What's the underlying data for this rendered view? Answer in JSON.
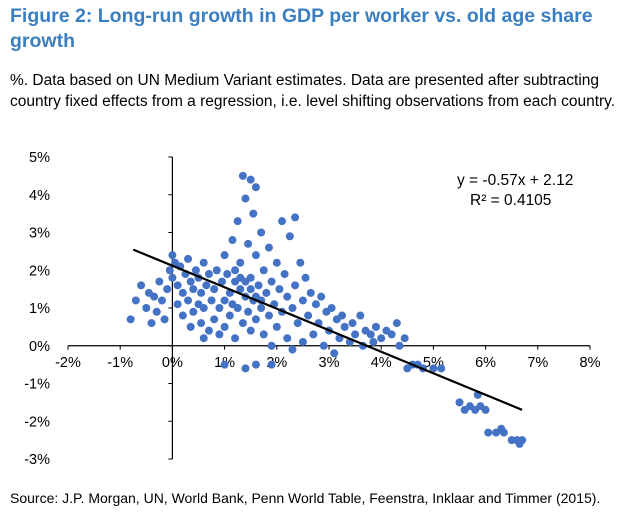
{
  "title": "Figure 2: Long-run growth in GDP per worker vs. old age share growth",
  "subtitle": "%. Data based on UN Medium Variant estimates. Data are presented after subtracting country fixed effects from a regression, i.e. level shifting observations from each country.",
  "source": "Source: J.P. Morgan, UN, World Bank, Penn World Table, Feenstra, Inklaar and Timmer (2015).",
  "chart_data": {
    "type": "scatter",
    "xlim": [
      -2,
      8
    ],
    "ylim": [
      -3,
      5
    ],
    "x_ticks": [
      "-2%",
      "-1%",
      "0%",
      "1%",
      "2%",
      "3%",
      "4%",
      "5%",
      "6%",
      "7%",
      "8%"
    ],
    "y_ticks": [
      "5%",
      "4%",
      "3%",
      "2%",
      "1%",
      "0%",
      "-1%",
      "-2%",
      "-3%"
    ],
    "grid": false,
    "trendline": {
      "slope": -0.57,
      "intercept": 2.12,
      "x_range": [
        -0.75,
        6.7
      ],
      "equation": "y = -0.57x + 2.12",
      "r2": "R² = 0.4105"
    },
    "point_color": "#4472C4",
    "points": [
      [
        -0.8,
        0.7
      ],
      [
        -0.7,
        1.2
      ],
      [
        -0.6,
        1.6
      ],
      [
        -0.5,
        1.0
      ],
      [
        -0.45,
        1.4
      ],
      [
        -0.4,
        0.6
      ],
      [
        -0.35,
        1.3
      ],
      [
        -0.3,
        0.9
      ],
      [
        -0.25,
        1.7
      ],
      [
        -0.2,
        1.2
      ],
      [
        -0.15,
        0.7
      ],
      [
        -0.1,
        1.5
      ],
      [
        -0.05,
        2.0
      ],
      [
        0.0,
        2.4
      ],
      [
        0.0,
        1.8
      ],
      [
        0.05,
        2.2
      ],
      [
        0.1,
        1.1
      ],
      [
        0.1,
        1.6
      ],
      [
        0.15,
        2.1
      ],
      [
        0.2,
        1.4
      ],
      [
        0.2,
        0.8
      ],
      [
        0.25,
        1.9
      ],
      [
        0.3,
        1.2
      ],
      [
        0.3,
        2.3
      ],
      [
        0.35,
        1.7
      ],
      [
        0.4,
        0.9
      ],
      [
        0.4,
        1.5
      ],
      [
        0.45,
        2.0
      ],
      [
        0.5,
        1.1
      ],
      [
        0.5,
        1.8
      ],
      [
        0.55,
        0.6
      ],
      [
        0.55,
        1.4
      ],
      [
        0.6,
        2.2
      ],
      [
        0.6,
        1.0
      ],
      [
        0.65,
        1.6
      ],
      [
        0.7,
        0.4
      ],
      [
        0.7,
        1.9
      ],
      [
        0.75,
        1.2
      ],
      [
        0.8,
        0.7
      ],
      [
        0.8,
        1.5
      ],
      [
        0.85,
        2.0
      ],
      [
        0.9,
        1.0
      ],
      [
        0.9,
        0.3
      ],
      [
        0.95,
        1.7
      ],
      [
        1.0,
        1.2
      ],
      [
        1.0,
        2.4
      ],
      [
        1.0,
        0.5
      ],
      [
        1.05,
        1.9
      ],
      [
        1.1,
        1.4
      ],
      [
        1.1,
        0.8
      ],
      [
        1.15,
        2.8
      ],
      [
        1.15,
        1.1
      ],
      [
        1.2,
        1.7
      ],
      [
        1.2,
        0.2
      ],
      [
        1.25,
        3.3
      ],
      [
        1.25,
        1.0
      ],
      [
        1.3,
        2.2
      ],
      [
        1.3,
        1.5
      ],
      [
        1.35,
        0.6
      ],
      [
        1.35,
        4.5
      ],
      [
        1.4,
        3.9
      ],
      [
        1.4,
        1.3
      ],
      [
        1.45,
        2.7
      ],
      [
        1.45,
        0.9
      ],
      [
        1.5,
        4.4
      ],
      [
        1.5,
        1.8
      ],
      [
        1.5,
        0.4
      ],
      [
        1.55,
        3.5
      ],
      [
        1.55,
        1.2
      ],
      [
        1.6,
        4.2
      ],
      [
        1.6,
        2.4
      ],
      [
        1.6,
        0.7
      ],
      [
        1.65,
        1.6
      ],
      [
        1.7,
        3.0
      ],
      [
        1.7,
        1.0
      ],
      [
        1.75,
        2.0
      ],
      [
        1.75,
        0.3
      ],
      [
        1.8,
        1.4
      ],
      [
        1.85,
        2.6
      ],
      [
        1.85,
        0.8
      ],
      [
        1.9,
        1.7
      ],
      [
        1.9,
        0.0
      ],
      [
        1.95,
        1.1
      ],
      [
        2.0,
        2.2
      ],
      [
        2.0,
        0.5
      ],
      [
        2.05,
        1.5
      ],
      [
        2.1,
        3.3
      ],
      [
        2.1,
        0.9
      ],
      [
        2.15,
        1.9
      ],
      [
        2.2,
        0.2
      ],
      [
        2.2,
        1.3
      ],
      [
        2.25,
        2.9
      ],
      [
        2.3,
        1.0
      ],
      [
        2.35,
        3.4
      ],
      [
        2.35,
        1.6
      ],
      [
        2.4,
        0.6
      ],
      [
        2.45,
        2.2
      ],
      [
        2.5,
        1.2
      ],
      [
        2.5,
        0.1
      ],
      [
        2.55,
        1.8
      ],
      [
        2.6,
        0.8
      ],
      [
        2.65,
        1.4
      ],
      [
        2.7,
        0.3
      ],
      [
        2.75,
        1.1
      ],
      [
        2.8,
        0.6
      ],
      [
        2.85,
        1.3
      ],
      [
        2.9,
        0.0
      ],
      [
        2.95,
        0.9
      ],
      [
        3.0,
        0.4
      ],
      [
        3.05,
        1.0
      ],
      [
        3.1,
        -0.2
      ],
      [
        3.15,
        0.7
      ],
      [
        3.2,
        0.2
      ],
      [
        3.25,
        0.8
      ],
      [
        3.3,
        0.5
      ],
      [
        3.4,
        0.1
      ],
      [
        3.45,
        0.6
      ],
      [
        3.5,
        0.3
      ],
      [
        3.6,
        0.8
      ],
      [
        3.65,
        0.0
      ],
      [
        3.7,
        0.4
      ],
      [
        3.8,
        0.3
      ],
      [
        3.85,
        0.1
      ],
      [
        3.9,
        0.5
      ],
      [
        4.0,
        0.2
      ],
      [
        4.1,
        0.4
      ],
      [
        4.2,
        0.3
      ],
      [
        4.3,
        0.6
      ],
      [
        4.35,
        0.0
      ],
      [
        4.45,
        0.2
      ],
      [
        4.5,
        -0.6
      ],
      [
        4.6,
        -0.5
      ],
      [
        4.7,
        -0.5
      ],
      [
        4.8,
        -0.6
      ],
      [
        5.0,
        -0.6
      ],
      [
        5.15,
        -0.6
      ],
      [
        5.5,
        -1.5
      ],
      [
        5.6,
        -1.7
      ],
      [
        5.7,
        -1.6
      ],
      [
        5.8,
        -1.7
      ],
      [
        5.85,
        -1.3
      ],
      [
        5.9,
        -1.6
      ],
      [
        6.0,
        -1.7
      ],
      [
        6.05,
        -2.3
      ],
      [
        6.2,
        -2.3
      ],
      [
        6.3,
        -2.2
      ],
      [
        6.35,
        -2.3
      ],
      [
        6.5,
        -2.5
      ],
      [
        6.6,
        -2.5
      ],
      [
        6.65,
        -2.6
      ],
      [
        6.7,
        -2.5
      ],
      [
        1.0,
        -0.5
      ],
      [
        1.4,
        -0.6
      ],
      [
        1.6,
        -0.5
      ],
      [
        1.9,
        -0.5
      ],
      [
        2.3,
        -0.1
      ],
      [
        0.35,
        0.5
      ],
      [
        0.6,
        0.2
      ],
      [
        1.2,
        2.0
      ],
      [
        1.3,
        1.8
      ],
      [
        1.4,
        1.7
      ],
      [
        1.5,
        1.5
      ],
      [
        1.6,
        1.3
      ],
      [
        1.7,
        1.2
      ]
    ]
  }
}
